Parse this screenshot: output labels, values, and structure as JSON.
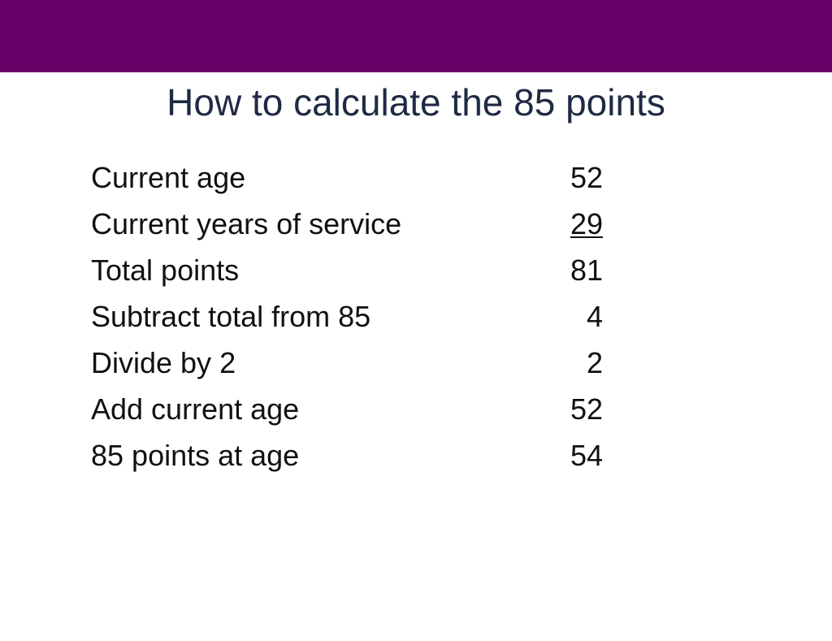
{
  "slide": {
    "title": "How to calculate the 85 points",
    "band_color": "#660066",
    "rows": [
      {
        "label": "Current age",
        "value": "52"
      },
      {
        "label": "Current years of service",
        "value": "29",
        "underlined": true
      },
      {
        "label": "Total points",
        "value": "81"
      },
      {
        "label": "Subtract total from 85",
        "value": "4"
      },
      {
        "label": "Divide by 2",
        "value": "2"
      },
      {
        "label": "Add current age",
        "value": "52"
      },
      {
        "label": "85 points at age",
        "value": "54"
      }
    ]
  }
}
